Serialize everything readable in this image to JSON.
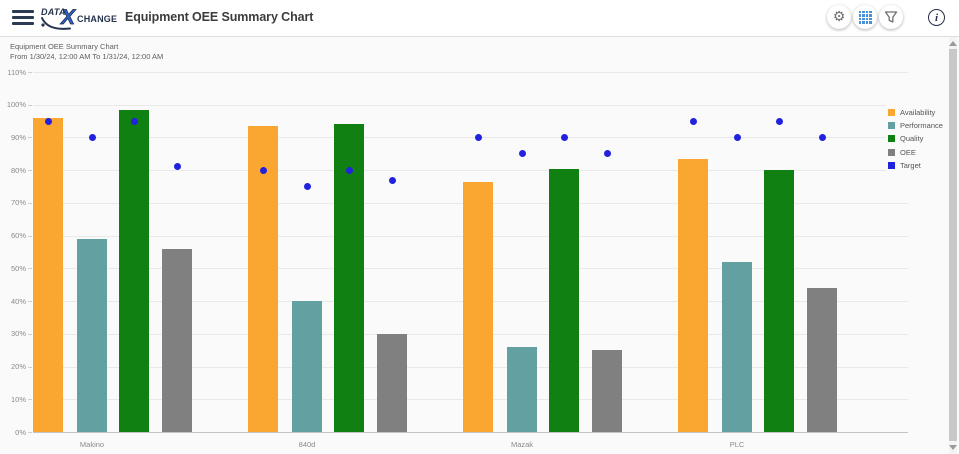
{
  "header": {
    "title": "Equipment OEE Summary Chart",
    "logo": {
      "part1": "DATA",
      "x": "X",
      "part2": "CHANGE"
    },
    "icons": [
      {
        "name": "menu-icon",
        "glyph": "≡"
      },
      {
        "name": "gear-icon",
        "glyph": "⚙"
      },
      {
        "name": "grid-icon",
        "glyph": "▦"
      },
      {
        "name": "funnel-icon",
        "glyph": "⧩"
      },
      {
        "name": "info-icon",
        "glyph": "ⓘ"
      }
    ],
    "colors": {
      "accent_blue": "#4A90D8",
      "navy": "#26334D",
      "icon_gray": "#6F6F6F"
    }
  },
  "chart": {
    "title": "Equipment OEE Summary Chart",
    "subtitle": "From 1/30/24, 12:00 AM To 1/31/24, 12:00 AM"
  },
  "chart_data": {
    "type": "bar",
    "title": "Equipment OEE Summary Chart",
    "subtitle": "From 1/30/24, 12:00 AM To 1/31/24, 12:00 AM",
    "xlabel": "",
    "ylabel": "",
    "ylim": [
      0,
      110
    ],
    "ytick_step": 10,
    "yticks": [
      "0%",
      "10%",
      "20%",
      "30%",
      "40%",
      "50%",
      "60%",
      "70%",
      "80%",
      "90%",
      "100%",
      "110%"
    ],
    "grid": true,
    "legend_position": "right",
    "legend": [
      "Availability",
      "Performance",
      "Quality",
      "OEE",
      "Target"
    ],
    "categories": [
      "Makino",
      "840d",
      "Mazak",
      "PLC"
    ],
    "series": [
      {
        "name": "Availability",
        "type": "bar",
        "color": "#F9A731",
        "values": [
          96,
          93.5,
          76.5,
          83.5
        ]
      },
      {
        "name": "Performance",
        "type": "bar",
        "color": "#63A0A2",
        "values": [
          59,
          40,
          26,
          52
        ]
      },
      {
        "name": "Quality",
        "type": "bar",
        "color": "#108012",
        "values": [
          98.5,
          94,
          80.5,
          80
        ]
      },
      {
        "name": "OEE",
        "type": "bar",
        "color": "#808080",
        "values": [
          56,
          30,
          25,
          44
        ]
      },
      {
        "name": "Target",
        "type": "point",
        "color": "#2121DE",
        "values_per_bar": [
          [
            95,
            90,
            95,
            81
          ],
          [
            80,
            75,
            80,
            77
          ],
          [
            90,
            85,
            90,
            85
          ],
          [
            95,
            90,
            95,
            90
          ]
        ]
      }
    ]
  }
}
